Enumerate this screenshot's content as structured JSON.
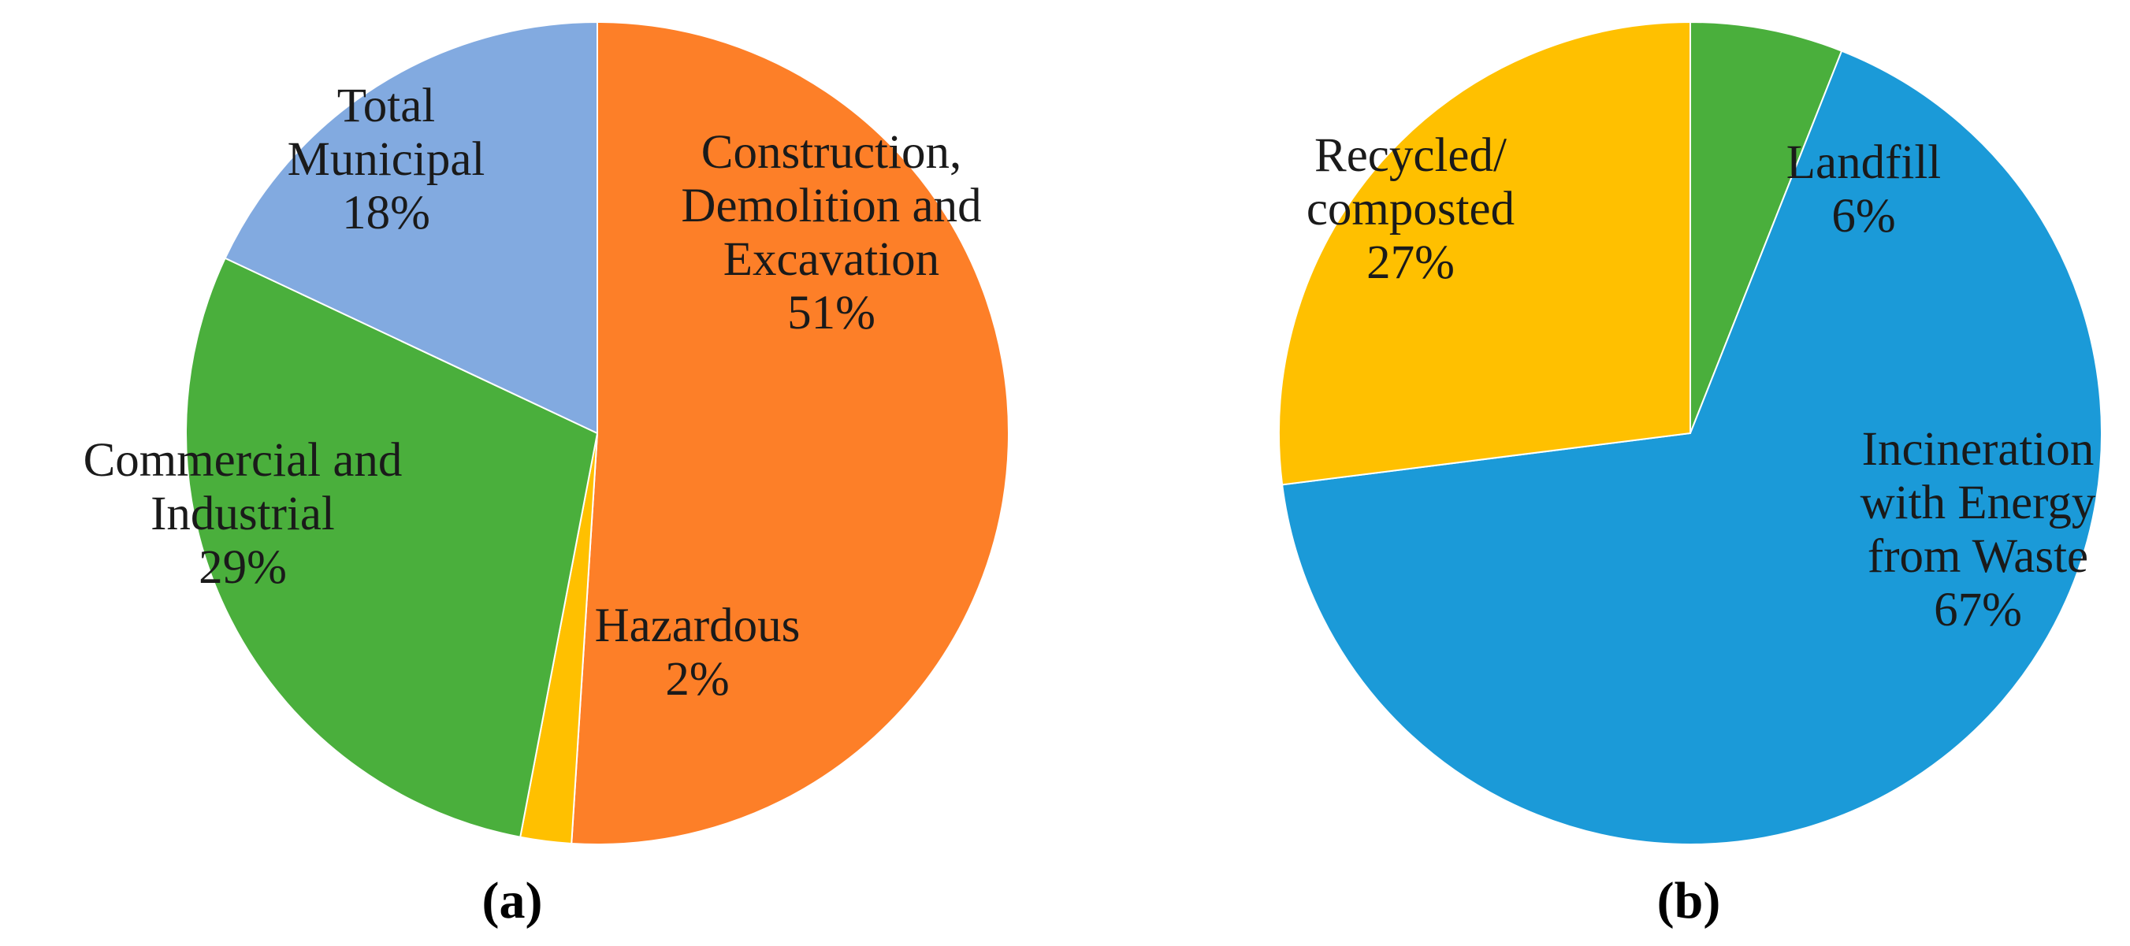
{
  "chart_data": [
    {
      "type": "pie",
      "caption": "(a)",
      "slices": [
        {
          "name": "Construction, Demolition and Excavation",
          "lines": [
            "Construction,",
            "Demolition and",
            "Excavation",
            "51%"
          ],
          "value": 51,
          "color": "#FD7F28"
        },
        {
          "name": "Hazardous",
          "lines": [
            "Hazardous",
            "2%"
          ],
          "value": 2,
          "color": "#FFC000"
        },
        {
          "name": "Commercial and Industrial",
          "lines": [
            "Commercial and",
            "Industrial",
            "29%"
          ],
          "value": 29,
          "color": "#4AAF3C"
        },
        {
          "name": "Total Municipal",
          "lines": [
            "Total",
            "Municipal",
            "18%"
          ],
          "value": 18,
          "color": "#82AAE0"
        }
      ]
    },
    {
      "type": "pie",
      "caption": "(b)",
      "slices": [
        {
          "name": "Landfill",
          "lines": [
            "Landfill",
            "6%"
          ],
          "value": 6,
          "color": "#4AAF3C"
        },
        {
          "name": "Incineration with Energy from Waste",
          "lines": [
            "Incineration",
            "with Energy",
            "from Waste",
            "67%"
          ],
          "value": 67,
          "color": "#1B9AD8"
        },
        {
          "name": "Recycled/ composted",
          "lines": [
            "Recycled/",
            "composted",
            "27%"
          ],
          "value": 27,
          "color": "#FFC000"
        }
      ]
    }
  ]
}
